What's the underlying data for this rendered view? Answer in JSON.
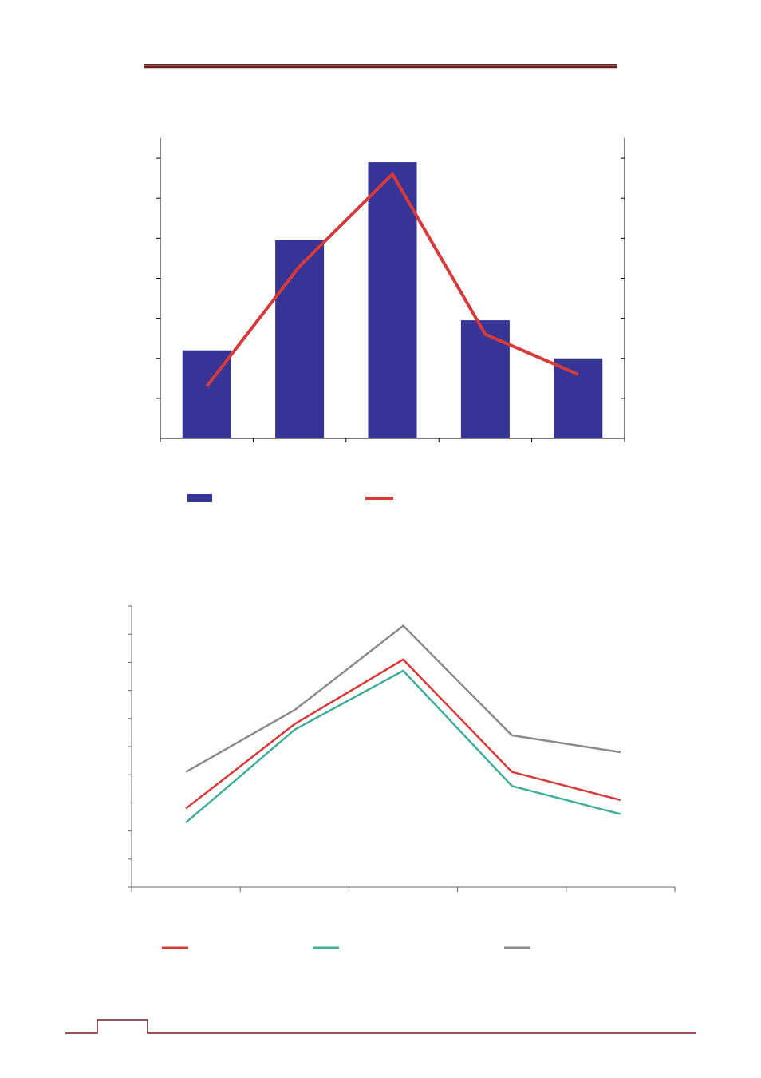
{
  "colors": {
    "rule": "#6b1f1f",
    "bar": "#363494",
    "line_red": "#d73a3a",
    "line_teal": "#3fae99",
    "line_gray": "#8a8a8a"
  },
  "chart_data": [
    {
      "type": "bar",
      "categories": [
        "",
        "",
        "",
        "",
        ""
      ],
      "series": [
        {
          "values": [
            2.2,
            4.95,
            6.9,
            2.95,
            2.0
          ]
        },
        {
          "type": "line",
          "values": [
            1.3,
            4.3,
            6.6,
            2.6,
            1.6
          ]
        }
      ],
      "ylim": [
        0,
        7.5
      ],
      "y2lim": [
        0,
        7.5
      ],
      "grid": false,
      "legend": "bottom",
      "legend_colors": [
        "#363494",
        "#d73a3a"
      ]
    },
    {
      "type": "line",
      "categories": [
        "",
        "",
        "",
        "",
        ""
      ],
      "series": [
        {
          "values": [
            2.8,
            5.8,
            8.1,
            4.1,
            3.1
          ]
        },
        {
          "values": [
            2.3,
            5.6,
            7.7,
            3.6,
            2.6
          ]
        },
        {
          "values": [
            4.1,
            6.3,
            9.3,
            5.4,
            4.8
          ]
        }
      ],
      "ylim": [
        0,
        10
      ],
      "grid": false,
      "legend": "bottom",
      "legend_colors": [
        "#d73a3a",
        "#3fae99",
        "#8a8a8a"
      ]
    }
  ]
}
